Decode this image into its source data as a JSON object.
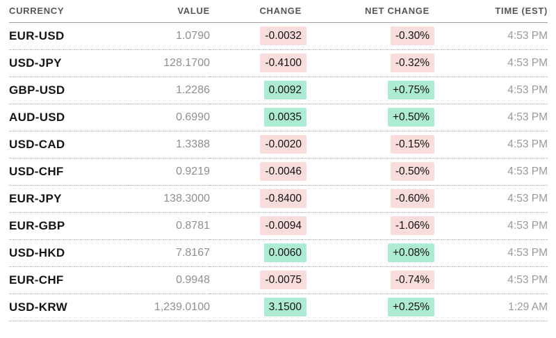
{
  "colors": {
    "positive-bg": "#aeebd3",
    "negative-bg": "#f9dcdc",
    "header-text": "#565656",
    "currency-text": "#151515",
    "value-text": "#8f8f8f",
    "badge-text": "#121212",
    "time-text": "#9a9a9a",
    "header-line": "#9c9c9c",
    "row-line": "#ababab"
  },
  "table": {
    "columns": {
      "currency": "CURRENCY",
      "value": "VALUE",
      "change": "CHANGE",
      "net_change": "NET CHANGE",
      "time": "TIME (EST)"
    },
    "rows": [
      {
        "pair": "EUR-USD",
        "value": "1.0790",
        "change": "-0.0032",
        "net_change": "-0.30%",
        "dir": "down",
        "time": "4:53 PM"
      },
      {
        "pair": "USD-JPY",
        "value": "128.1700",
        "change": "-0.4100",
        "net_change": "-0.32%",
        "dir": "down",
        "time": "4:53 PM"
      },
      {
        "pair": "GBP-USD",
        "value": "1.2286",
        "change": "0.0092",
        "net_change": "+0.75%",
        "dir": "up",
        "time": "4:53 PM"
      },
      {
        "pair": "AUD-USD",
        "value": "0.6990",
        "change": "0.0035",
        "net_change": "+0.50%",
        "dir": "up",
        "time": "4:53 PM"
      },
      {
        "pair": "USD-CAD",
        "value": "1.3388",
        "change": "-0.0020",
        "net_change": "-0.15%",
        "dir": "down",
        "time": "4:53 PM"
      },
      {
        "pair": "USD-CHF",
        "value": "0.9219",
        "change": "-0.0046",
        "net_change": "-0.50%",
        "dir": "down",
        "time": "4:53 PM"
      },
      {
        "pair": "EUR-JPY",
        "value": "138.3000",
        "change": "-0.8400",
        "net_change": "-0.60%",
        "dir": "down",
        "time": "4:53 PM"
      },
      {
        "pair": "EUR-GBP",
        "value": "0.8781",
        "change": "-0.0094",
        "net_change": "-1.06%",
        "dir": "down",
        "time": "4:53 PM"
      },
      {
        "pair": "USD-HKD",
        "value": "7.8167",
        "change": "0.0060",
        "net_change": "+0.08%",
        "dir": "up",
        "time": "4:53 PM"
      },
      {
        "pair": "EUR-CHF",
        "value": "0.9948",
        "change": "-0.0075",
        "net_change": "-0.74%",
        "dir": "down",
        "time": "4:53 PM"
      },
      {
        "pair": "USD-KRW",
        "value": "1,239.0100",
        "change": "3.1500",
        "net_change": "+0.25%",
        "dir": "up",
        "time": "1:29 AM"
      }
    ]
  }
}
